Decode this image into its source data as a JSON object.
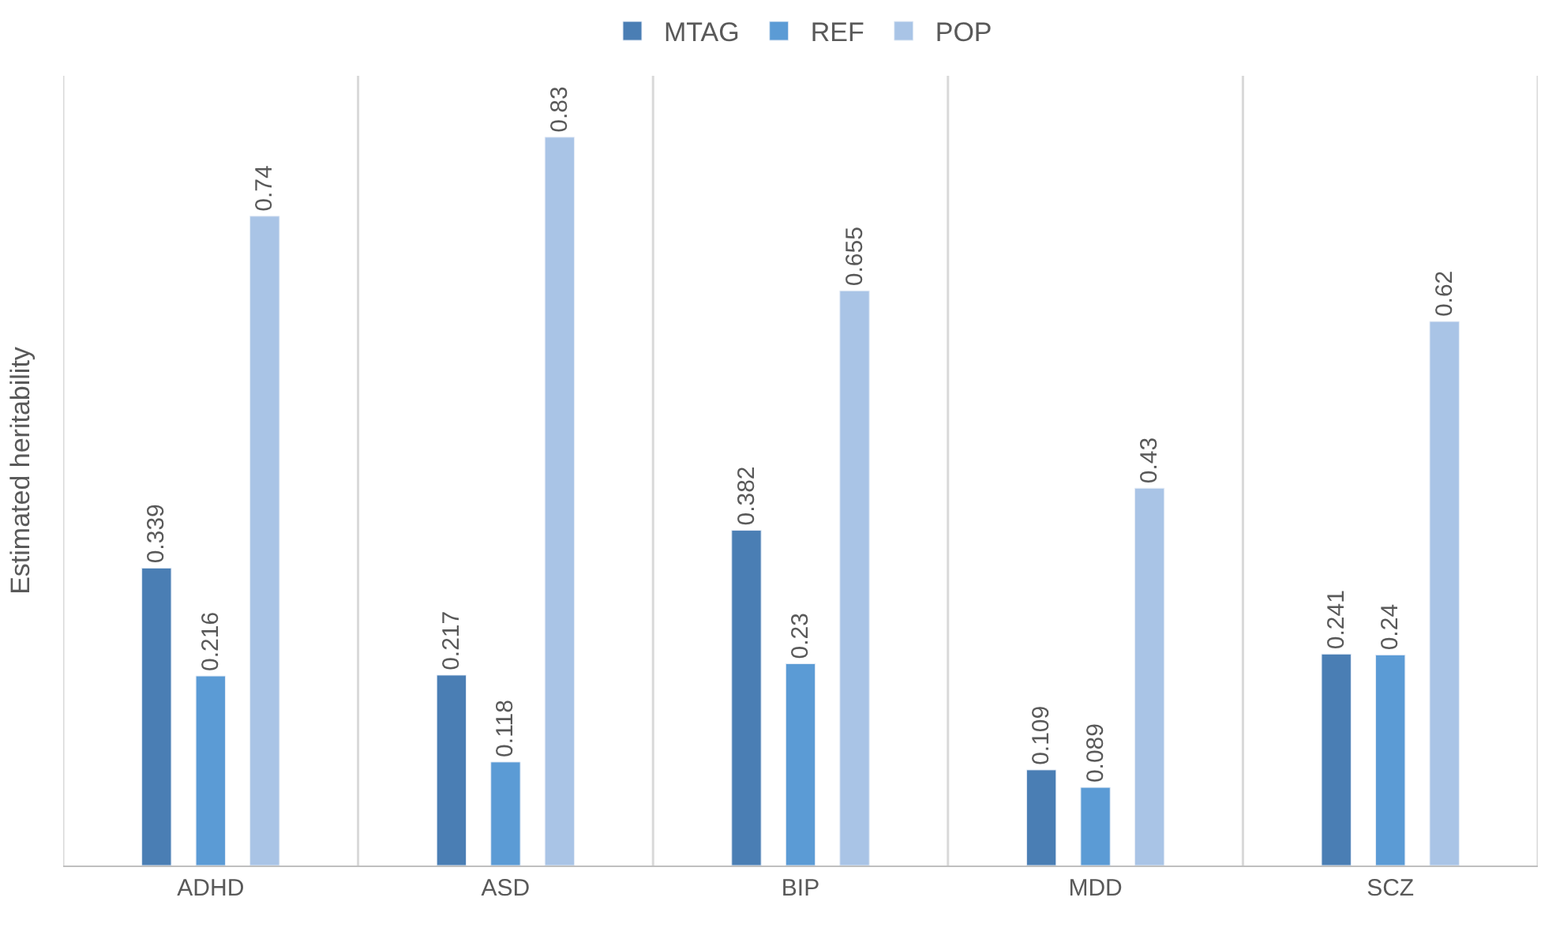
{
  "chart_data": {
    "type": "bar",
    "ylabel": "Estimated heritability",
    "categories": [
      "ADHD",
      "ASD",
      "BIP",
      "MDD",
      "SCZ"
    ],
    "series": [
      {
        "name": "MTAG",
        "color": "#4a7eb4",
        "values": [
          0.339,
          0.217,
          0.382,
          0.109,
          0.241
        ]
      },
      {
        "name": "REF",
        "color": "#5b9bd5",
        "values": [
          0.216,
          0.118,
          0.23,
          0.089,
          0.24
        ]
      },
      {
        "name": "POP",
        "color": "#a9c4e6",
        "values": [
          0.74,
          0.83,
          0.655,
          0.43,
          0.62
        ]
      }
    ],
    "ylim": [
      0,
      0.9
    ],
    "data_labels": true,
    "grid": "x",
    "legend": "top"
  }
}
